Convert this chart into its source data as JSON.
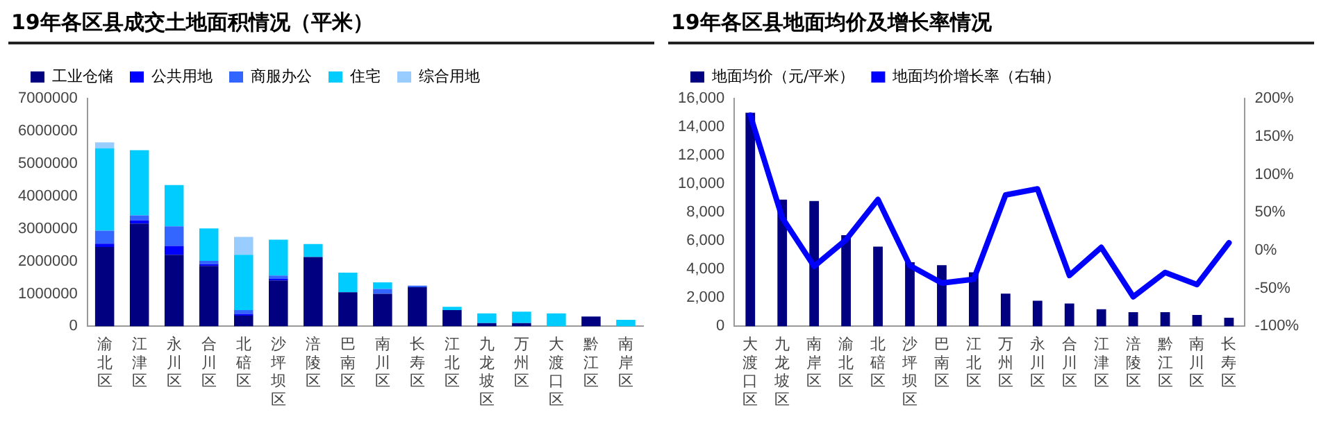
{
  "chart_data": [
    {
      "type": "bar",
      "title": "19年各区县成交土地面积情况（平米）",
      "stacked": true,
      "legend": "top",
      "grid": false,
      "categories": [
        "渝北区",
        "江津区",
        "永川区",
        "合川区",
        "北碚区",
        "沙坪坝区",
        "涪陵区",
        "巴南区",
        "南川区",
        "长寿区",
        "江北区",
        "九龙坡区",
        "万州区",
        "大渡口区",
        "黔江区",
        "南岸区"
      ],
      "ylim": [
        0,
        7000000
      ],
      "yticks": [
        0,
        1000000,
        2000000,
        3000000,
        4000000,
        5000000,
        6000000,
        7000000
      ],
      "series": [
        {
          "name": "工业仓储",
          "color": "#000080",
          "values": [
            2440000,
            3160000,
            2200000,
            1860000,
            330000,
            1410000,
            2130000,
            1050000,
            1000000,
            1200000,
            500000,
            100000,
            100000,
            null,
            300000,
            null
          ]
        },
        {
          "name": "公共用地",
          "color": "#0000ff",
          "values": [
            100000,
            100000,
            270000,
            50000,
            50000,
            50000,
            null,
            null,
            null,
            null,
            null,
            null,
            null,
            null,
            null,
            null
          ]
        },
        {
          "name": "商服办公",
          "color": "#3366ff",
          "values": [
            400000,
            150000,
            600000,
            100000,
            120000,
            100000,
            null,
            null,
            150000,
            50000,
            null,
            null,
            null,
            null,
            null,
            null
          ]
        },
        {
          "name": "住宅",
          "color": "#00ccff",
          "values": [
            2530000,
            2000000,
            1270000,
            1000000,
            1700000,
            1100000,
            400000,
            600000,
            200000,
            null,
            100000,
            300000,
            350000,
            400000,
            null,
            200000
          ]
        },
        {
          "name": "综合用地",
          "color": "#99ccff",
          "values": [
            180000,
            null,
            null,
            null,
            550000,
            null,
            null,
            null,
            null,
            null,
            null,
            null,
            null,
            null,
            null,
            null
          ]
        }
      ]
    },
    {
      "type": "bar",
      "title": "19年各区县地面均价及增长率情况",
      "legend": "top",
      "grid": false,
      "categories": [
        "大渡口区",
        "九龙坡区",
        "南岸区",
        "渝北区",
        "北碚区",
        "沙坪坝区",
        "巴南区",
        "江北区",
        "万州区",
        "永川区",
        "合川区",
        "江津区",
        "涪陵区",
        "黔江区",
        "南川区",
        "长寿区"
      ],
      "ylim": [
        0,
        16000
      ],
      "yticks": [
        0,
        {
          "value": 2000,
          "label": "2,000"
        },
        {
          "value": 4000,
          "label": "4,000"
        },
        {
          "value": 6000,
          "label": "6,000"
        },
        {
          "value": 8000,
          "label": "8,000"
        },
        {
          "value": 10000,
          "label": "10,000"
        },
        {
          "value": 12000,
          "label": "12,000"
        },
        {
          "value": 14000,
          "label": "14,000"
        },
        {
          "value": 16000,
          "label": "16,000"
        }
      ],
      "y2lim": [
        -100,
        200
      ],
      "y2ticks": [
        {
          "value": -100,
          "label": "-100%"
        },
        {
          "value": -50,
          "label": "-50%"
        },
        {
          "value": 0,
          "label": "0%"
        },
        {
          "value": 50,
          "label": "50%"
        },
        {
          "value": 100,
          "label": "100%"
        },
        {
          "value": 150,
          "label": "150%"
        },
        {
          "value": 200,
          "label": "200%"
        }
      ],
      "series": [
        {
          "name": "地面均价（元/平米）",
          "color": "#000080",
          "values": [
            15000,
            8900,
            8800,
            6400,
            5600,
            4500,
            4300,
            3800,
            2300,
            1800,
            1600,
            1200,
            1000,
            1000,
            800,
            600
          ]
        },
        {
          "name": "地面均价增长率（右轴）",
          "type": "line",
          "axis": "y2",
          "marker": "none",
          "line_style": "solid",
          "color": "#0000ff",
          "values": [
            178,
            43,
            -21,
            14,
            67,
            -20,
            -43,
            -38,
            73,
            81,
            -33,
            4,
            -61,
            -29,
            -45,
            10
          ]
        }
      ]
    }
  ]
}
